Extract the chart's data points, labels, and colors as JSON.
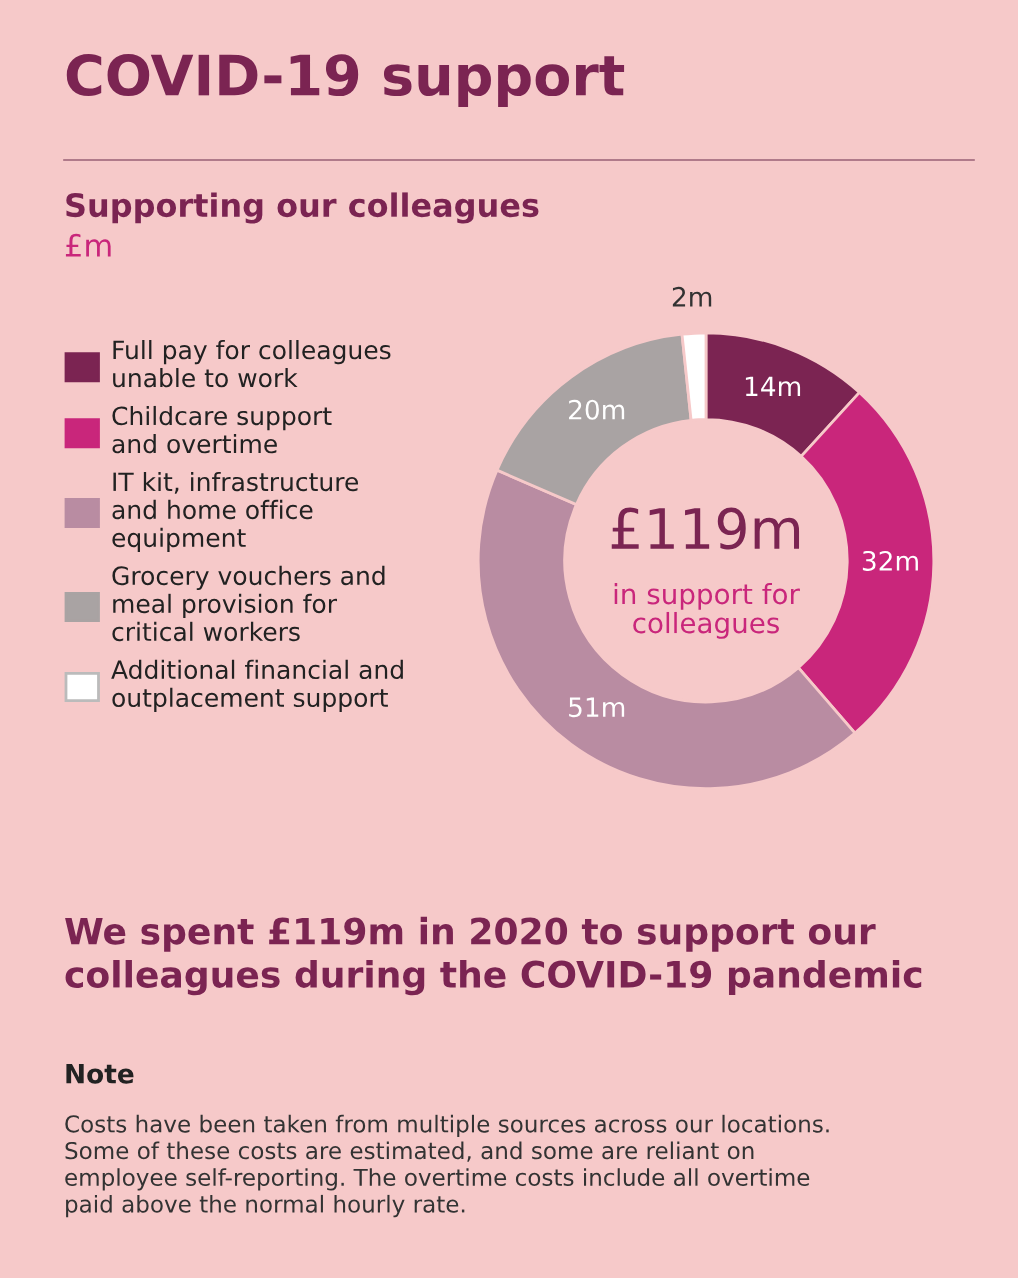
{
  "chart_data": {
    "type": "donut",
    "title": "COVID-19 support",
    "subtitle": "Supporting our colleagues",
    "categories": [
      "Full pay for colleagues\nunable to work",
      "Childcare support\nand overtime",
      "IT kit, infrastructure\nand home office\nequipment",
      "Grocery vouchers and\nmeal provision for\ncritical workers",
      "Additional financial and\noutplacement support"
    ],
    "values": [
      14,
      32,
      51,
      20,
      2
    ],
    "colors": [
      "#7b2452",
      "#c9267b",
      "#b98ca2",
      "#a9a3a3",
      "#ffffff"
    ],
    "value_labels": [
      "14m",
      "32m",
      "51m",
      "20m",
      "2m"
    ],
    "legend": "left",
    "annotations": [
      "£m",
      "£119m",
      "in support for\ncolleagues",
      "We spent £119m in 2020 to support our\ncolleagues during the COVID-19 pandemic",
      "Note",
      "Costs have been taken from multiple sources across our locations.\nSome of these costs are estimated, and some are reliant on\nemployee self-reporting. The overtime costs include all overtime\npaid above the normal hourly rate."
    ]
  }
}
